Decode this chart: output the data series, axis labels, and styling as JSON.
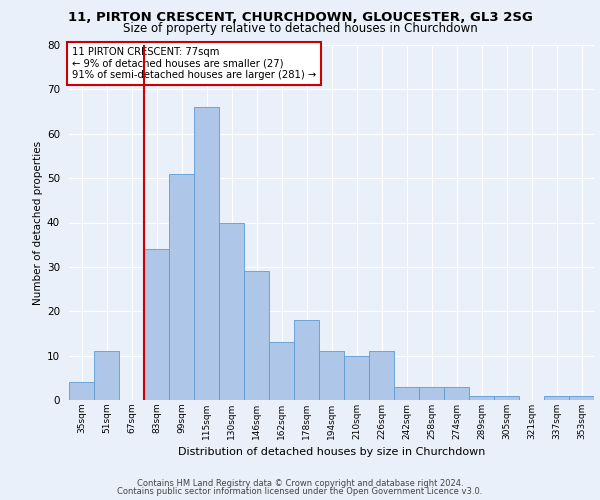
{
  "title_line1": "11, PIRTON CRESCENT, CHURCHDOWN, GLOUCESTER, GL3 2SG",
  "title_line2": "Size of property relative to detached houses in Churchdown",
  "xlabel": "Distribution of detached houses by size in Churchdown",
  "ylabel": "Number of detached properties",
  "categories": [
    "35sqm",
    "51sqm",
    "67sqm",
    "83sqm",
    "99sqm",
    "115sqm",
    "130sqm",
    "146sqm",
    "162sqm",
    "178sqm",
    "194sqm",
    "210sqm",
    "226sqm",
    "242sqm",
    "258sqm",
    "274sqm",
    "289sqm",
    "305sqm",
    "321sqm",
    "337sqm",
    "353sqm"
  ],
  "values": [
    4,
    11,
    0,
    34,
    51,
    66,
    40,
    29,
    13,
    18,
    11,
    10,
    11,
    3,
    3,
    3,
    1,
    1,
    0,
    1,
    1
  ],
  "bar_color": "#aec6e8",
  "bar_edge_color": "#5b9bd5",
  "vline_x_index": 2.5,
  "vline_color": "#cc0000",
  "ylim": [
    0,
    80
  ],
  "yticks": [
    0,
    10,
    20,
    30,
    40,
    50,
    60,
    70,
    80
  ],
  "annotation_text": "11 PIRTON CRESCENT: 77sqm\n← 9% of detached houses are smaller (27)\n91% of semi-detached houses are larger (281) →",
  "annotation_box_color": "#ffffff",
  "annotation_box_edge_color": "#cc0000",
  "bg_color": "#eaf0f9",
  "plot_bg_color": "#eaf0f9",
  "grid_color": "#ffffff",
  "footer_line1": "Contains HM Land Registry data © Crown copyright and database right 2024.",
  "footer_line2": "Contains public sector information licensed under the Open Government Licence v3.0."
}
